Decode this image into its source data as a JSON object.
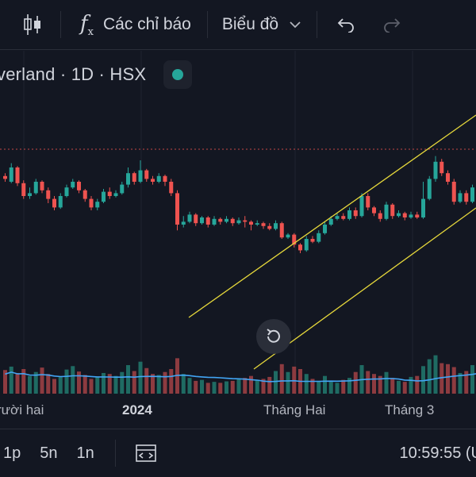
{
  "toolbar": {
    "indicators_label": "Các chỉ báo",
    "chart_type_label": "Biểu đồ",
    "icons": [
      "candlestick-icon",
      "function-icon",
      "chevron-down-icon",
      "undo-icon",
      "redo-icon"
    ]
  },
  "symbol": {
    "title": "verland · 1D · HSX",
    "status_color": "#26a69a"
  },
  "colors": {
    "up": "#26a69a",
    "down": "#ef5350",
    "volume_up": "#1f6b63",
    "volume_down": "#8d3b40",
    "volume_ma": "#42a5f5",
    "channel": "#e6d83b",
    "price_line": "#ef5350"
  },
  "x_axis": {
    "labels": [
      "rười hai",
      "2024",
      "Tháng Hai",
      "Tháng 3"
    ]
  },
  "bottom_bar": {
    "ranges": [
      "1p",
      "5n",
      "1n"
    ],
    "time": "10:59:55 (U",
    "icons": [
      "compare-dates-icon"
    ]
  },
  "chart_data": {
    "type": "candlestick",
    "title": "",
    "series_description": "daily candles with volume bars and volume moving average",
    "candles": [
      [
        0.74,
        0.72,
        0.76,
        0.7
      ],
      [
        0.7,
        0.8,
        0.83,
        0.69
      ],
      [
        0.8,
        0.69,
        0.81,
        0.67
      ],
      [
        0.69,
        0.6,
        0.71,
        0.58
      ],
      [
        0.6,
        0.62,
        0.66,
        0.58
      ],
      [
        0.62,
        0.7,
        0.72,
        0.61
      ],
      [
        0.7,
        0.64,
        0.71,
        0.62
      ],
      [
        0.64,
        0.58,
        0.66,
        0.55
      ],
      [
        0.58,
        0.52,
        0.6,
        0.5
      ],
      [
        0.52,
        0.6,
        0.62,
        0.51
      ],
      [
        0.6,
        0.66,
        0.68,
        0.59
      ],
      [
        0.66,
        0.7,
        0.72,
        0.65
      ],
      [
        0.7,
        0.64,
        0.71,
        0.62
      ],
      [
        0.64,
        0.58,
        0.65,
        0.56
      ],
      [
        0.58,
        0.52,
        0.6,
        0.5
      ],
      [
        0.52,
        0.56,
        0.58,
        0.5
      ],
      [
        0.56,
        0.63,
        0.65,
        0.55
      ],
      [
        0.63,
        0.6,
        0.66,
        0.58
      ],
      [
        0.6,
        0.62,
        0.64,
        0.59
      ],
      [
        0.62,
        0.68,
        0.7,
        0.61
      ],
      [
        0.68,
        0.76,
        0.8,
        0.66
      ],
      [
        0.76,
        0.7,
        0.77,
        0.68
      ],
      [
        0.7,
        0.78,
        0.85,
        0.69
      ],
      [
        0.78,
        0.72,
        0.79,
        0.7
      ],
      [
        0.72,
        0.7,
        0.74,
        0.68
      ],
      [
        0.7,
        0.74,
        0.76,
        0.69
      ],
      [
        0.74,
        0.7,
        0.75,
        0.67
      ],
      [
        0.7,
        0.62,
        0.72,
        0.6
      ],
      [
        0.62,
        0.4,
        0.64,
        0.36
      ],
      [
        0.4,
        0.42,
        0.46,
        0.38
      ],
      [
        0.42,
        0.47,
        0.49,
        0.41
      ],
      [
        0.47,
        0.41,
        0.48,
        0.39
      ],
      [
        0.41,
        0.45,
        0.46,
        0.4
      ],
      [
        0.45,
        0.4,
        0.46,
        0.38
      ],
      [
        0.4,
        0.44,
        0.46,
        0.39
      ],
      [
        0.44,
        0.42,
        0.45,
        0.4
      ],
      [
        0.42,
        0.44,
        0.46,
        0.41
      ],
      [
        0.44,
        0.41,
        0.45,
        0.39
      ],
      [
        0.41,
        0.43,
        0.45,
        0.4
      ],
      [
        0.43,
        0.42,
        0.46,
        0.38
      ],
      [
        0.42,
        0.4,
        0.43,
        0.36
      ],
      [
        0.4,
        0.41,
        0.43,
        0.39
      ],
      [
        0.41,
        0.39,
        0.42,
        0.37
      ],
      [
        0.39,
        0.37,
        0.41,
        0.36
      ],
      [
        0.37,
        0.41,
        0.43,
        0.36
      ],
      [
        0.41,
        0.31,
        0.42,
        0.3
      ],
      [
        0.31,
        0.33,
        0.34,
        0.3
      ],
      [
        0.33,
        0.26,
        0.34,
        0.24
      ],
      [
        0.26,
        0.22,
        0.27,
        0.2
      ],
      [
        0.22,
        0.3,
        0.32,
        0.21
      ],
      [
        0.3,
        0.28,
        0.32,
        0.27
      ],
      [
        0.28,
        0.34,
        0.36,
        0.27
      ],
      [
        0.34,
        0.4,
        0.42,
        0.33
      ],
      [
        0.4,
        0.44,
        0.46,
        0.39
      ],
      [
        0.44,
        0.46,
        0.48,
        0.43
      ],
      [
        0.46,
        0.44,
        0.48,
        0.43
      ],
      [
        0.44,
        0.5,
        0.52,
        0.43
      ],
      [
        0.5,
        0.46,
        0.52,
        0.44
      ],
      [
        0.46,
        0.6,
        0.62,
        0.45
      ],
      [
        0.6,
        0.52,
        0.62,
        0.5
      ],
      [
        0.52,
        0.48,
        0.53,
        0.46
      ],
      [
        0.48,
        0.44,
        0.5,
        0.42
      ],
      [
        0.44,
        0.54,
        0.56,
        0.43
      ],
      [
        0.54,
        0.46,
        0.55,
        0.44
      ],
      [
        0.46,
        0.48,
        0.5,
        0.45
      ],
      [
        0.48,
        0.45,
        0.49,
        0.43
      ],
      [
        0.45,
        0.47,
        0.49,
        0.44
      ],
      [
        0.47,
        0.45,
        0.49,
        0.44
      ],
      [
        0.45,
        0.58,
        0.7,
        0.44
      ],
      [
        0.58,
        0.72,
        0.74,
        0.57
      ],
      [
        0.72,
        0.84,
        0.88,
        0.7
      ],
      [
        0.84,
        0.76,
        0.86,
        0.74
      ],
      [
        0.76,
        0.7,
        0.78,
        0.68
      ],
      [
        0.7,
        0.56,
        0.72,
        0.54
      ],
      [
        0.56,
        0.62,
        0.64,
        0.55
      ],
      [
        0.62,
        0.56,
        0.64,
        0.54
      ],
      [
        0.56,
        0.66,
        0.68,
        0.55
      ],
      [
        0.66,
        0.76,
        0.78,
        0.65
      ]
    ],
    "volume": [
      0.48,
      0.55,
      0.42,
      0.5,
      0.36,
      0.44,
      0.53,
      0.4,
      0.3,
      0.34,
      0.49,
      0.56,
      0.45,
      0.38,
      0.3,
      0.33,
      0.42,
      0.4,
      0.36,
      0.44,
      0.58,
      0.46,
      0.65,
      0.52,
      0.4,
      0.38,
      0.44,
      0.5,
      0.72,
      0.4,
      0.32,
      0.26,
      0.28,
      0.22,
      0.24,
      0.22,
      0.25,
      0.26,
      0.3,
      0.32,
      0.36,
      0.28,
      0.3,
      0.34,
      0.46,
      0.6,
      0.44,
      0.55,
      0.5,
      0.4,
      0.3,
      0.26,
      0.36,
      0.24,
      0.22,
      0.28,
      0.32,
      0.44,
      0.58,
      0.46,
      0.4,
      0.36,
      0.44,
      0.32,
      0.26,
      0.24,
      0.34,
      0.36,
      0.56,
      0.7,
      0.78,
      0.62,
      0.6,
      0.54,
      0.42,
      0.46,
      0.58,
      0.82
    ]
  }
}
